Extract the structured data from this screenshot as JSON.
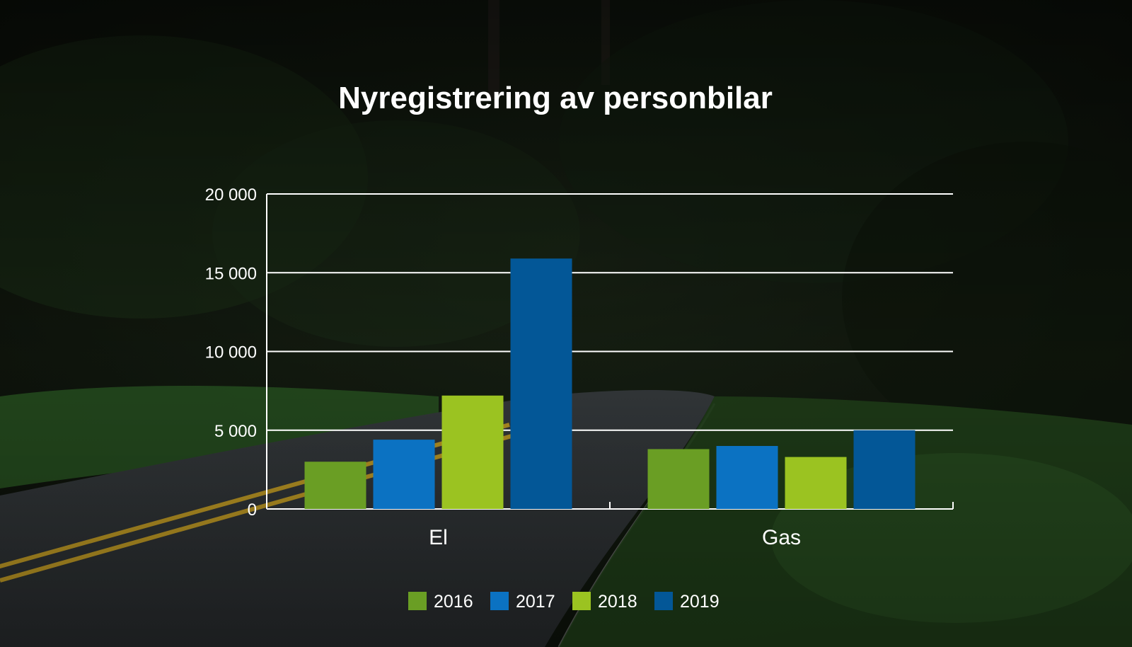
{
  "slide": {
    "title": "Nyregistrering av personbilar"
  },
  "chart_data": {
    "type": "bar",
    "title": "Nyregistrering av personbilar",
    "categories": [
      "El",
      "Gas"
    ],
    "series": [
      {
        "name": "2016",
        "color": "#6a9e24",
        "values": [
          3000,
          3800
        ]
      },
      {
        "name": "2017",
        "color": "#0b72c2",
        "values": [
          4400,
          4000
        ]
      },
      {
        "name": "2018",
        "color": "#9bc321",
        "values": [
          7200,
          3300
        ]
      },
      {
        "name": "2019",
        "color": "#035797",
        "values": [
          15900,
          5000
        ]
      }
    ],
    "ylim": [
      0,
      20000
    ],
    "yticks": [
      0,
      5000,
      10000,
      15000,
      20000
    ],
    "ytick_labels": [
      "0",
      "5 000",
      "10 000",
      "15 000",
      "20 000"
    ],
    "grid": true,
    "legend": "bottom",
    "text_color": "#ffffff",
    "background": "dark forest road photo"
  }
}
